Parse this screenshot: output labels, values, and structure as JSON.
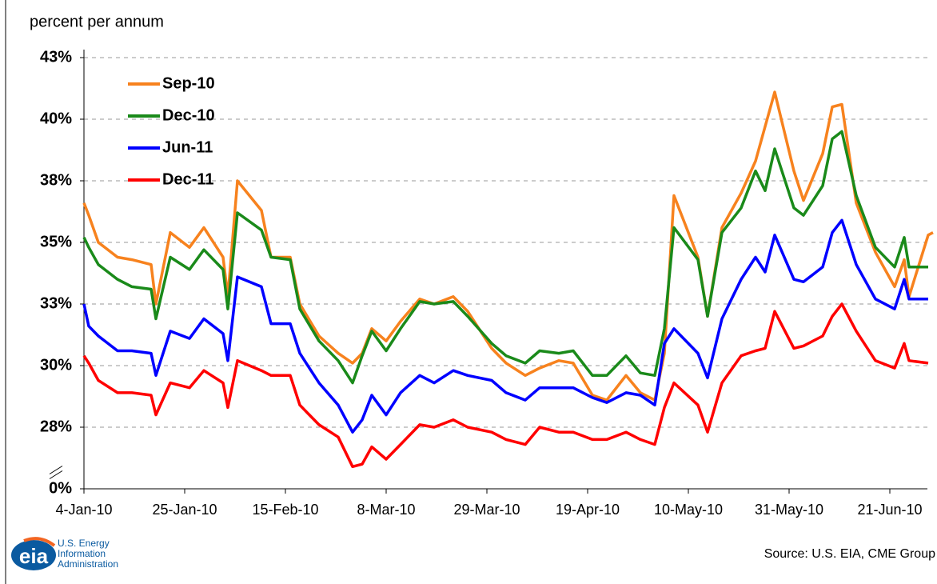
{
  "chart_data": {
    "type": "line",
    "y_axis_label": "percent per annum",
    "source": "Source:  U.S. EIA, CME Group",
    "logo_mark": "eia",
    "logo_text": [
      "U.S. Energy",
      "Information",
      "Administration"
    ],
    "x": [
      "4-Jan-10",
      "5-Jan-10",
      "7-Jan-10",
      "11-Jan-10",
      "14-Jan-10",
      "18-Jan-10",
      "19-Jan-10",
      "22-Jan-10",
      "26-Jan-10",
      "29-Jan-10",
      "2-Feb-10",
      "3-Feb-10",
      "5-Feb-10",
      "10-Feb-10",
      "12-Feb-10",
      "16-Feb-10",
      "18-Feb-10",
      "22-Feb-10",
      "26-Feb-10",
      "1-Mar-10",
      "3-Mar-10",
      "5-Mar-10",
      "8-Mar-10",
      "11-Mar-10",
      "15-Mar-10",
      "18-Mar-10",
      "22-Mar-10",
      "25-Mar-10",
      "30-Mar-10",
      "2-Apr-10",
      "6-Apr-10",
      "9-Apr-10",
      "13-Apr-10",
      "16-Apr-10",
      "20-Apr-10",
      "23-Apr-10",
      "27-Apr-10",
      "30-Apr-10",
      "3-May-10",
      "5-May-10",
      "7-May-10",
      "12-May-10",
      "14-May-10",
      "17-May-10",
      "21-May-10",
      "24-May-10",
      "26-May-10",
      "28-May-10",
      "1-Jun-10",
      "3-Jun-10",
      "7-Jun-10",
      "9-Jun-10",
      "11-Jun-10",
      "14-Jun-10",
      "18-Jun-10",
      "22-Jun-10",
      "24-Jun-10",
      "25-Jun-10",
      "29-Jun-10",
      "30-Jun-10"
    ],
    "series": [
      {
        "name": "Sep-10",
        "color": "#f7821e",
        "values": [
          36.6,
          36.1,
          35.0,
          34.4,
          34.3,
          34.1,
          32.5,
          35.4,
          34.8,
          35.6,
          34.4,
          32.8,
          37.5,
          36.3,
          34.4,
          34.4,
          32.5,
          31.2,
          30.5,
          30.1,
          30.5,
          31.5,
          31.0,
          31.8,
          32.7,
          32.5,
          32.8,
          32.2,
          30.7,
          30.1,
          29.6,
          29.9,
          30.2,
          30.1,
          28.8,
          28.6,
          29.6,
          28.9,
          28.6,
          30.5,
          36.9,
          34.4,
          32.0,
          35.6,
          37.0,
          38.3,
          39.7,
          41.1,
          37.9,
          36.7,
          38.6,
          40.5,
          40.6,
          36.6,
          34.6,
          33.2,
          34.3,
          32.8,
          35.3,
          35.4
        ]
      },
      {
        "name": "Dec-10",
        "color": "#1a8a1a",
        "values": [
          35.2,
          34.8,
          34.1,
          33.5,
          33.2,
          33.1,
          31.9,
          34.4,
          33.9,
          34.7,
          33.9,
          32.3,
          36.2,
          35.5,
          34.4,
          34.3,
          32.3,
          31.0,
          30.2,
          29.3,
          30.4,
          31.4,
          30.6,
          31.5,
          32.6,
          32.5,
          32.6,
          32.0,
          30.9,
          30.4,
          30.1,
          30.6,
          30.5,
          30.6,
          29.6,
          29.6,
          30.4,
          29.7,
          29.6,
          31.5,
          35.6,
          34.3,
          32.0,
          35.4,
          36.4,
          37.9,
          37.1,
          38.8,
          36.4,
          36.1,
          37.3,
          39.2,
          39.5,
          36.9,
          34.8,
          34.0,
          35.2,
          34.0,
          34.0,
          null
        ]
      },
      {
        "name": "Jun-11",
        "color": "#0000ff",
        "values": [
          32.5,
          31.6,
          31.2,
          30.6,
          30.6,
          30.5,
          29.6,
          31.4,
          31.1,
          31.9,
          31.3,
          30.2,
          33.6,
          33.2,
          31.7,
          31.7,
          30.5,
          29.3,
          28.4,
          27.3,
          27.8,
          28.8,
          28.0,
          28.9,
          29.6,
          29.3,
          29.8,
          29.6,
          29.4,
          28.9,
          28.6,
          29.1,
          29.1,
          29.1,
          28.7,
          28.5,
          28.9,
          28.8,
          28.4,
          30.9,
          31.5,
          30.5,
          29.5,
          31.9,
          33.5,
          34.4,
          33.8,
          35.3,
          33.5,
          33.4,
          34.0,
          35.4,
          35.9,
          34.1,
          32.7,
          32.3,
          33.5,
          32.7,
          32.7,
          null
        ]
      },
      {
        "name": "Dec-11",
        "color": "#ff0000",
        "values": [
          30.4,
          30.1,
          29.4,
          28.9,
          28.9,
          28.8,
          28.0,
          29.3,
          29.1,
          29.8,
          29.3,
          28.3,
          30.2,
          29.8,
          29.6,
          29.6,
          28.4,
          27.6,
          27.1,
          25.9,
          26.0,
          26.7,
          26.2,
          26.8,
          27.6,
          27.5,
          27.8,
          27.5,
          27.3,
          27.0,
          26.8,
          27.5,
          27.3,
          27.3,
          27.0,
          27.0,
          27.3,
          27.0,
          26.8,
          28.3,
          29.3,
          28.4,
          27.3,
          29.3,
          30.4,
          30.6,
          30.7,
          32.2,
          30.7,
          30.8,
          31.2,
          32.0,
          32.5,
          31.4,
          30.2,
          29.9,
          30.9,
          30.2,
          30.1,
          null
        ]
      }
    ],
    "xlim": [
      "4-Jan-10",
      "30-Jun-10"
    ],
    "xticks": [
      "4-Jan-10",
      "25-Jan-10",
      "15-Feb-10",
      "8-Mar-10",
      "29-Mar-10",
      "19-Apr-10",
      "10-May-10",
      "31-May-10",
      "21-Jun-10"
    ],
    "ylim": [
      0,
      42.5
    ],
    "axis_break": 25,
    "yticks": [
      {
        "value": 0,
        "label": "0%"
      },
      {
        "value": 27.5,
        "label": "28%"
      },
      {
        "value": 30,
        "label": "30%"
      },
      {
        "value": 32.5,
        "label": "33%"
      },
      {
        "value": 35,
        "label": "35%"
      },
      {
        "value": 37.5,
        "label": "38%"
      },
      {
        "value": 40,
        "label": "40%"
      },
      {
        "value": 42.5,
        "label": "43%"
      }
    ],
    "grid": true,
    "legend": "upper left"
  }
}
